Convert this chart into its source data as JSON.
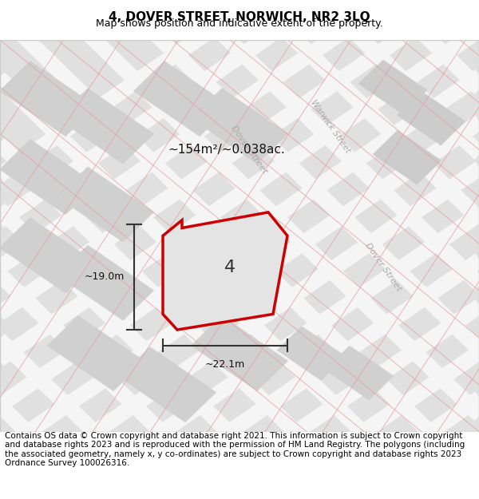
{
  "title": "4, DOVER STREET, NORWICH, NR2 3LQ",
  "subtitle": "Map shows position and indicative extent of the property.",
  "footer": "Contains OS data © Crown copyright and database right 2021. This information is subject to Crown copyright and database rights 2023 and is reproduced with the permission of HM Land Registry. The polygons (including the associated geometry, namely x, y co-ordinates) are subject to Crown copyright and database rights 2023 Ordnance Survey 100026316.",
  "area_label": "~154m²/~0.038ac.",
  "width_label": "~22.1m",
  "height_label": "~19.0m",
  "plot_number": "4",
  "bg_color": "#f0f0f0",
  "map_bg": "#e8e8e8",
  "road_color": "#ffffff",
  "block_color": "#d8d8d8",
  "line_color_light": "#e8b0b0",
  "plot_outline_color": "#cc0000",
  "plot_fill_color": "#e8e8e8",
  "street_label_color": "#aaaaaa",
  "dimension_color": "#333333",
  "title_fontsize": 11,
  "subtitle_fontsize": 9,
  "footer_fontsize": 7.5
}
